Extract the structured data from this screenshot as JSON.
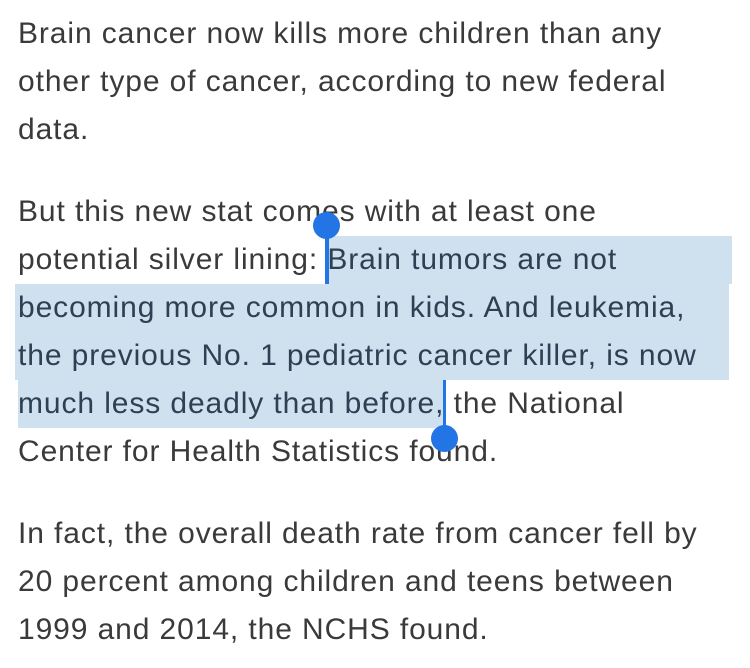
{
  "colors": {
    "background": "#ffffff",
    "body_text": "#3a3a3a",
    "selected_text": "#2d4054",
    "selection_highlight": "#cfe0ef",
    "selection_handle_blue": "#2374e5"
  },
  "selection": {
    "selected_text": "Brain tumors are not becoming more common in kids. And leukemia, the previous No. 1 pediatric cancer killer, is now much less deadly than before,",
    "start_handle": "selection-handle-start",
    "end_handle": "selection-handle-end"
  },
  "article": {
    "paragraph1": {
      "line1": "Brain cancer now kills more children than any",
      "line2": "other type of cancer, according to new federal",
      "line3": "data."
    },
    "paragraph2": {
      "line1": "But this new stat comes with at least one",
      "line2_before": "potential silver lining: ",
      "line2_selected": "Brain tumors are not",
      "line3_selected": "becoming more common in kids. And leukemia,",
      "line4_selected": "the previous No. 1 pediatric cancer killer, is now",
      "line5_selected": "much less deadly than before,",
      "line5_after": " the National",
      "line6": "Center for Health Statistics found."
    },
    "paragraph3": {
      "line1": "In fact, the overall death rate from cancer fell by",
      "line2": "20 percent among children and teens between",
      "line3": "1999 and 2014, the NCHS found."
    }
  }
}
